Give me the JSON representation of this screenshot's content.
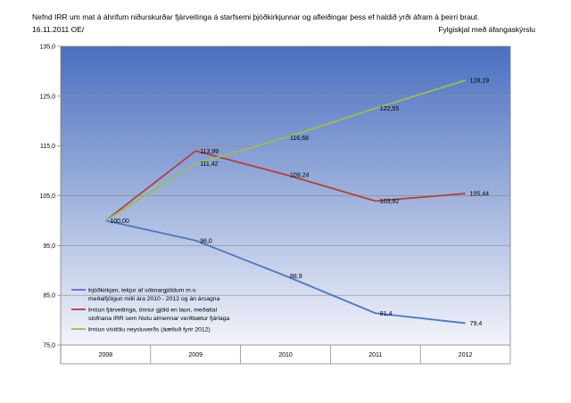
{
  "header": {
    "title": "Nefnd IRR um mat á áhrifum niðurskurðar fjárveitinga á starfsemi þjóðkirkjunnar og afleiðingar þess ef haldið yrði áfram á þeirri braut.",
    "date": "16.11.2011 OE/",
    "note": "Fylgiskjal með áfangaskýrslu"
  },
  "colors": {
    "plot_top": "#4a6fc0",
    "plot_bottom": "#f2f4fa",
    "series": [
      "#4f77be",
      "#b0413e",
      "#9bbb59"
    ]
  },
  "chart_data": {
    "type": "line",
    "x": [
      "2008",
      "2009",
      "2010",
      "2011",
      "2012"
    ],
    "ylim": [
      75,
      135
    ],
    "yticks": [
      "75,0",
      "85,0",
      "95,0",
      "105,0",
      "115,0",
      "125,0",
      "135,0"
    ],
    "grid": true,
    "legend_position": "bottom-left",
    "series": [
      {
        "name_lines": [
          "Þjóðkirkjan, tekjur af sóknargjöldum m.v.",
          "meðalfjölgun milli ára 2010 - 2012 og án ársagna"
        ],
        "values": [
          100.0,
          96.0,
          88.9,
          81.4,
          79.4
        ],
        "labels": [
          "100,00",
          "96,0",
          "88,9",
          "81,4",
          "79,4"
        ]
      },
      {
        "name_lines": [
          "Þróun fjárveitinga, önnur gjöld en laun, meðaltal",
          "stofnana IRR sem hlutu almennar verðbætur fjárlaga"
        ],
        "values": [
          100.0,
          113.99,
          109.24,
          103.92,
          105.44
        ],
        "labels": [
          "",
          "113,99",
          "109,24",
          "103,92",
          "105,44"
        ]
      },
      {
        "name_lines": [
          "Þróun vísitölu neysluverðs (áætluð fyrir 2012)"
        ],
        "values": [
          100.0,
          111.42,
          116.68,
          122.55,
          128.19
        ],
        "labels": [
          "",
          "111,42",
          "116,68",
          "122,55",
          "128,19"
        ]
      }
    ]
  }
}
